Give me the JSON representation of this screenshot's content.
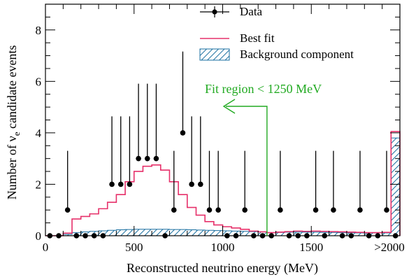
{
  "chart_data": {
    "type": "histogram",
    "xlabel": "Reconstructed neutrino energy (MeV)",
    "ylabel_prefix": "Number of ν",
    "ylabel_subscript": "e",
    "ylabel_suffix": " candidate events",
    "xlim": [
      0,
      2000
    ],
    "ylim": [
      0,
      9
    ],
    "x_ticks": [
      0,
      500,
      1000,
      1500
    ],
    "x_tick_labels": [
      "0",
      "500",
      "1000",
      "1500"
    ],
    "overflow_label": ">2000",
    "y_ticks": [
      0,
      2,
      4,
      6,
      8
    ],
    "y_tick_labels": [
      "0",
      "2",
      "4",
      "6",
      "8"
    ],
    "bin_width": 50,
    "legend": {
      "position": "top-center",
      "entries": [
        {
          "name": "Data",
          "style": "marker-errorbar"
        },
        {
          "name": "Best fit",
          "style": "line"
        },
        {
          "name": "Background component",
          "style": "hatched-fill"
        }
      ]
    },
    "annotation": {
      "text": "Fit region < 1250 MeV",
      "color": "#22aa22",
      "x_cut": 1250
    },
    "series": [
      {
        "name": "Data",
        "color": "#000000",
        "points": [
          {
            "x": 25,
            "y": 0,
            "up": 0
          },
          {
            "x": 75,
            "y": 0,
            "up": 0
          },
          {
            "x": 125,
            "y": 1,
            "up": 2.3
          },
          {
            "x": 175,
            "y": 0,
            "up": 0
          },
          {
            "x": 225,
            "y": 0,
            "up": 0
          },
          {
            "x": 275,
            "y": 0,
            "up": 0
          },
          {
            "x": 325,
            "y": 0,
            "up": 0
          },
          {
            "x": 375,
            "y": 2,
            "up": 2.64
          },
          {
            "x": 425,
            "y": 2,
            "up": 2.64
          },
          {
            "x": 475,
            "y": 2,
            "up": 2.64
          },
          {
            "x": 525,
            "y": 3,
            "up": 2.91
          },
          {
            "x": 575,
            "y": 3,
            "up": 2.91
          },
          {
            "x": 625,
            "y": 3,
            "up": 2.91
          },
          {
            "x": 675,
            "y": 0,
            "up": 0
          },
          {
            "x": 725,
            "y": 1,
            "up": 2.3
          },
          {
            "x": 775,
            "y": 4,
            "up": 3.16
          },
          {
            "x": 825,
            "y": 2,
            "up": 2.64
          },
          {
            "x": 875,
            "y": 2,
            "up": 2.64
          },
          {
            "x": 925,
            "y": 1,
            "up": 2.3
          },
          {
            "x": 975,
            "y": 1,
            "up": 2.3
          },
          {
            "x": 1025,
            "y": 0,
            "up": 0
          },
          {
            "x": 1075,
            "y": 0,
            "up": 0
          },
          {
            "x": 1125,
            "y": 1,
            "up": 2.3
          },
          {
            "x": 1175,
            "y": 0,
            "up": 0
          },
          {
            "x": 1225,
            "y": 0,
            "up": 0
          },
          {
            "x": 1275,
            "y": 0,
            "up": 0
          },
          {
            "x": 1325,
            "y": 1,
            "up": 2.3
          },
          {
            "x": 1375,
            "y": 0,
            "up": 0
          },
          {
            "x": 1425,
            "y": 0,
            "up": 0
          },
          {
            "x": 1475,
            "y": 0,
            "up": 0
          },
          {
            "x": 1525,
            "y": 1,
            "up": 2.3
          },
          {
            "x": 1575,
            "y": 0,
            "up": 0
          },
          {
            "x": 1625,
            "y": 1,
            "up": 2.3
          },
          {
            "x": 1675,
            "y": 0,
            "up": 0
          },
          {
            "x": 1725,
            "y": 0,
            "up": 0
          },
          {
            "x": 1775,
            "y": 1,
            "up": 2.3
          },
          {
            "x": 1825,
            "y": 0,
            "up": 0
          },
          {
            "x": 1875,
            "y": 0,
            "up": 0
          },
          {
            "x": 1925,
            "y": 1,
            "up": 2.3
          },
          {
            "x": 1975,
            "y": 0,
            "up": 0
          }
        ]
      },
      {
        "name": "Best fit",
        "color": "#e6306a",
        "bin_values": [
          0,
          0,
          0.1,
          0.65,
          0.75,
          0.85,
          1.05,
          1.3,
          1.6,
          2.1,
          2.5,
          2.7,
          2.75,
          2.55,
          2.1,
          1.6,
          1.1,
          0.8,
          0.55,
          0.42,
          0.35,
          0.3,
          0.25,
          0.18,
          0.15,
          0.12,
          0.14,
          0.16,
          0.18,
          0.17,
          0.18,
          0.17,
          0.16,
          0.15,
          0.14,
          0.13,
          0.12,
          0.12,
          0.13,
          4.05
        ]
      },
      {
        "name": "Background component",
        "color": "#1a6fa0",
        "bin_values": [
          0,
          0,
          0.05,
          0.12,
          0.15,
          0.17,
          0.19,
          0.21,
          0.23,
          0.24,
          0.25,
          0.25,
          0.25,
          0.25,
          0.24,
          0.24,
          0.23,
          0.22,
          0.21,
          0.2,
          0.19,
          0.18,
          0.17,
          0.16,
          0.15,
          0.12,
          0.13,
          0.14,
          0.14,
          0.14,
          0.14,
          0.13,
          0.13,
          0.12,
          0.12,
          0.11,
          0.11,
          0.11,
          0.11,
          3.8
        ]
      }
    ]
  }
}
